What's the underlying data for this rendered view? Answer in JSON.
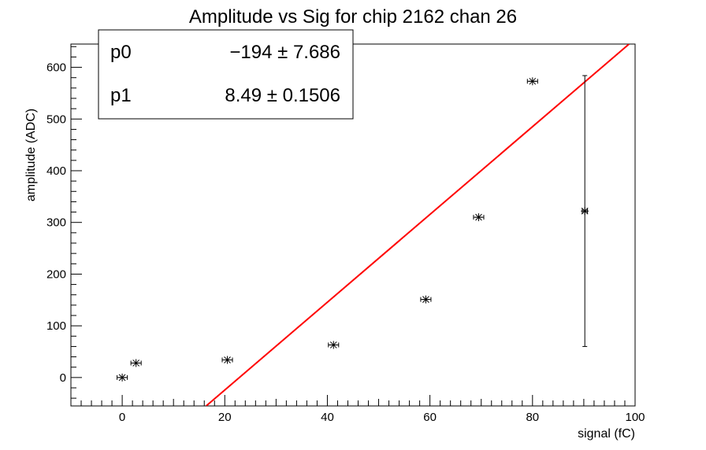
{
  "chart_data": {
    "type": "scatter",
    "title": "Amplitude vs Sig for chip 2162 chan 26",
    "xlabel": "signal (fC)",
    "ylabel": "amplitude (ADC)",
    "xlim": [
      -10,
      100
    ],
    "ylim": [
      -55,
      645
    ],
    "x_ticks": [
      0,
      20,
      40,
      60,
      80,
      100
    ],
    "y_ticks": [
      0,
      100,
      200,
      300,
      400,
      500,
      600
    ],
    "grid": false,
    "points": [
      {
        "x": 0,
        "y": 0,
        "xerr": 1,
        "yerr": 0
      },
      {
        "x": 2.7,
        "y": 28,
        "xerr": 1,
        "yerr": 0
      },
      {
        "x": 20.5,
        "y": 34,
        "xerr": 1,
        "yerr": 0
      },
      {
        "x": 41.2,
        "y": 63,
        "xerr": 1,
        "yerr": 0
      },
      {
        "x": 59.2,
        "y": 151,
        "xerr": 1,
        "yerr": 0
      },
      {
        "x": 69.5,
        "y": 310,
        "xerr": 1,
        "yerr": 0
      },
      {
        "x": 80,
        "y": 573,
        "xerr": 1,
        "yerr": 0
      },
      {
        "x": 90.2,
        "y": 322,
        "xerr": 0.5,
        "yerr": 262
      }
    ],
    "fit": {
      "p0": -194,
      "p1": 8.49,
      "color": "#ff0000"
    },
    "stats": [
      {
        "name": "p0",
        "value": "−194 ± 7.686"
      },
      {
        "name": "p1",
        "value": "8.49 ± 0.1506"
      }
    ],
    "legend_placement": "top-left",
    "marker_color": "#000000"
  }
}
